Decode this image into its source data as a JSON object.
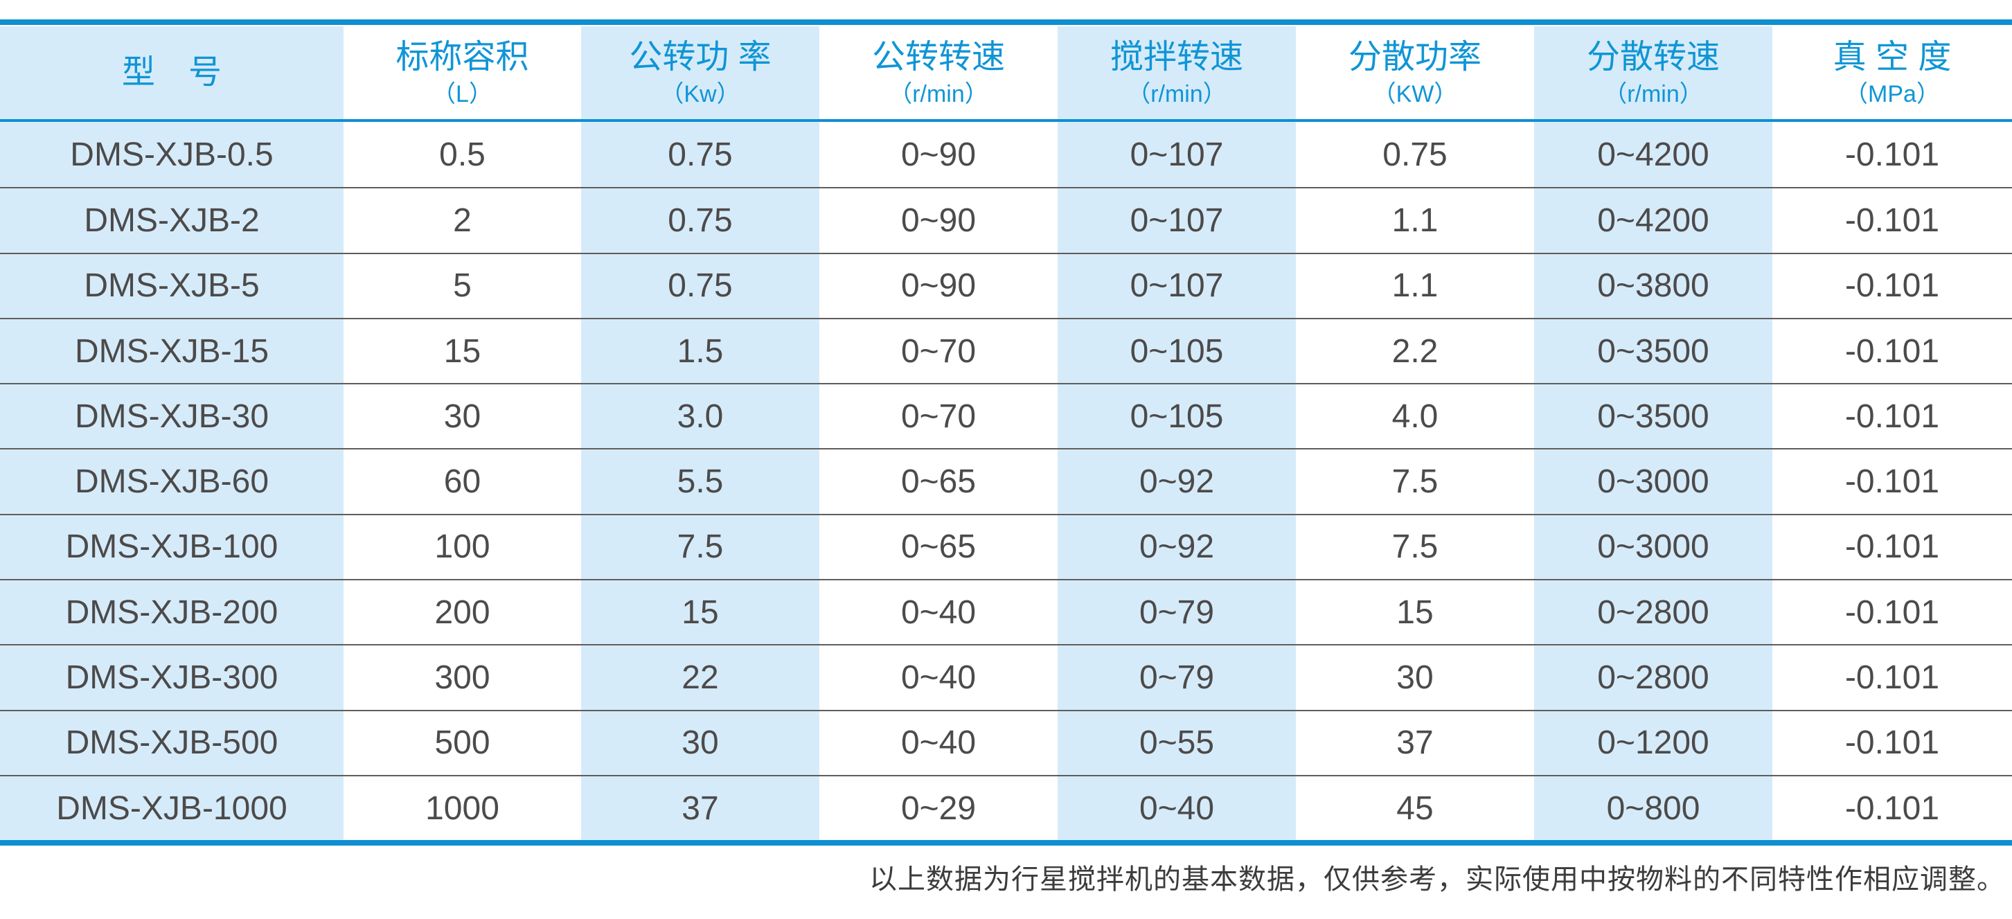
{
  "table": {
    "columns": [
      {
        "title": "型　号",
        "unit": ""
      },
      {
        "title": "标称容积",
        "unit": "（L）"
      },
      {
        "title": "公转功 率",
        "unit": "（Kw）"
      },
      {
        "title": "公转转速",
        "unit": "（r/min）"
      },
      {
        "title": "搅拌转速",
        "unit": "（r/min）"
      },
      {
        "title": "分散功率",
        "unit": "（KW）"
      },
      {
        "title": "分散转速",
        "unit": "（r/min）"
      },
      {
        "title": "真 空 度",
        "unit": "（MPa）"
      }
    ],
    "rows": [
      [
        "DMS-XJB-0.5",
        "0.5",
        "0.75",
        "0~90",
        "0~107",
        "0.75",
        "0~4200",
        "-0.101"
      ],
      [
        "DMS-XJB-2",
        "2",
        "0.75",
        "0~90",
        "0~107",
        "1.1",
        "0~4200",
        "-0.101"
      ],
      [
        "DMS-XJB-5",
        "5",
        "0.75",
        "0~90",
        "0~107",
        "1.1",
        "0~3800",
        "-0.101"
      ],
      [
        "DMS-XJB-15",
        "15",
        "1.5",
        "0~70",
        "0~105",
        "2.2",
        "0~3500",
        "-0.101"
      ],
      [
        "DMS-XJB-30",
        "30",
        "3.0",
        "0~70",
        "0~105",
        "4.0",
        "0~3500",
        "-0.101"
      ],
      [
        "DMS-XJB-60",
        "60",
        "5.5",
        "0~65",
        "0~92",
        "7.5",
        "0~3000",
        "-0.101"
      ],
      [
        "DMS-XJB-100",
        "100",
        "7.5",
        "0~65",
        "0~92",
        "7.5",
        "0~3000",
        "-0.101"
      ],
      [
        "DMS-XJB-200",
        "200",
        "15",
        "0~40",
        "0~79",
        "15",
        "0~2800",
        "-0.101"
      ],
      [
        "DMS-XJB-300",
        "300",
        "22",
        "0~40",
        "0~79",
        "30",
        "0~2800",
        "-0.101"
      ],
      [
        "DMS-XJB-500",
        "500",
        "30",
        "0~40",
        "0~55",
        "37",
        "0~1200",
        "-0.101"
      ],
      [
        "DMS-XJB-1000",
        "1000",
        "37",
        "0~29",
        "0~40",
        "45",
        "0~800",
        "-0.101"
      ]
    ]
  },
  "footer": {
    "note": "以上数据为行星搅拌机的基本数据，仅供参考，实际使用中按物料的不同特性作相应调整。"
  },
  "colors": {
    "accent_blue": "#0d8fd1",
    "header_text_blue": "#0f95d6",
    "stripe_light_blue": "#d6ebf9",
    "data_text_gray": "#4c4a4a",
    "row_separator_gray": "#5f5d5c",
    "footer_text_gray": "#3c3c3c"
  }
}
